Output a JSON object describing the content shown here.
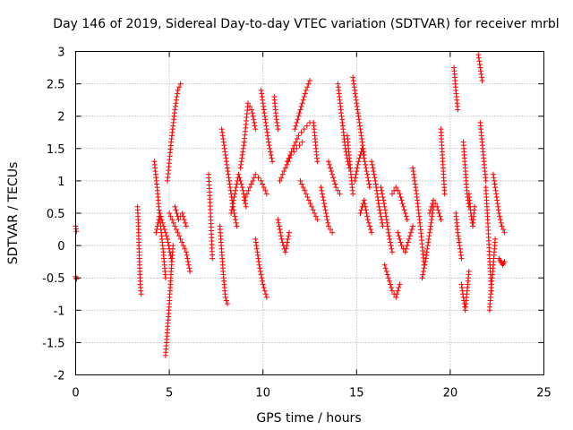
{
  "chart_data": {
    "type": "scatter",
    "title": "Day 146 of 2019, Sidereal Day-to-day VTEC variation (SDTVAR) for receiver mrbl",
    "xlabel": "GPS time / hours",
    "ylabel": "SDTVAR / TECUs",
    "xlim": [
      0,
      25
    ],
    "ylim": [
      -2,
      3
    ],
    "xticks": [
      0,
      5,
      10,
      15,
      20,
      25
    ],
    "xtick_labels": [
      "0",
      "5",
      "10",
      "15",
      "20",
      "25"
    ],
    "yticks": [
      -2,
      -1.5,
      -1,
      -0.5,
      0,
      0.5,
      1,
      1.5,
      2,
      2.5,
      3
    ],
    "ytick_labels": [
      "-2",
      "-1.5",
      "-1",
      "-0.5",
      "0",
      "0.5",
      "1",
      "1.5",
      "2",
      "2.5",
      "3"
    ],
    "grid": true,
    "marker": "+",
    "color": "#ff0000",
    "series": [
      {
        "name": "SDTVAR",
        "tracks": [
          {
            "x": [
              0.0,
              0.05
            ],
            "y": [
              0.3,
              0.22
            ]
          },
          {
            "x": [
              0.0,
              0.05
            ],
            "y": [
              -0.48,
              -0.52
            ]
          },
          {
            "x": [
              3.3,
              3.35,
              3.4,
              3.45,
              3.5
            ],
            "y": [
              0.6,
              0.3,
              -0.2,
              -0.6,
              -0.75
            ]
          },
          {
            "x": [
              4.2,
              4.35,
              4.5,
              4.65,
              4.8
            ],
            "y": [
              1.3,
              0.9,
              0.4,
              0.0,
              -0.5
            ]
          },
          {
            "x": [
              4.3,
              4.5,
              4.7,
              4.9,
              5.1
            ],
            "y": [
              0.2,
              0.5,
              0.3,
              0.1,
              -0.2
            ]
          },
          {
            "x": [
              4.8,
              4.9,
              5.0,
              5.1,
              5.2
            ],
            "y": [
              -1.7,
              -1.3,
              -0.9,
              -0.4,
              0.0
            ]
          },
          {
            "x": [
              4.9,
              5.1,
              5.3,
              5.45,
              5.6
            ],
            "y": [
              1.0,
              1.6,
              2.1,
              2.4,
              2.5
            ]
          },
          {
            "x": [
              5.0,
              5.3,
              5.6,
              5.9,
              6.1
            ],
            "y": [
              0.5,
              0.3,
              0.1,
              -0.1,
              -0.4
            ]
          },
          {
            "x": [
              5.3,
              5.5,
              5.7,
              5.9
            ],
            "y": [
              0.6,
              0.4,
              0.5,
              0.3
            ]
          },
          {
            "x": [
              7.1,
              7.2,
              7.3
            ],
            "y": [
              1.1,
              0.5,
              -0.2
            ]
          },
          {
            "x": [
              7.7,
              7.8,
              7.9,
              8.0,
              8.1
            ],
            "y": [
              0.3,
              -0.1,
              -0.5,
              -0.8,
              -0.9
            ]
          },
          {
            "x": [
              7.8,
              8.0,
              8.2,
              8.4,
              8.6
            ],
            "y": [
              1.8,
              1.4,
              1.0,
              0.6,
              0.3
            ]
          },
          {
            "x": [
              8.3,
              8.5,
              8.7,
              8.9,
              9.1
            ],
            "y": [
              0.5,
              0.8,
              1.1,
              0.9,
              0.6
            ]
          },
          {
            "x": [
              8.8,
              9.0,
              9.2,
              9.4,
              9.6
            ],
            "y": [
              1.2,
              1.6,
              2.2,
              2.1,
              1.8
            ]
          },
          {
            "x": [
              9.0,
              9.3,
              9.6,
              9.9,
              10.2
            ],
            "y": [
              0.7,
              0.9,
              1.1,
              1.0,
              0.8
            ]
          },
          {
            "x": [
              9.6,
              9.8,
              10.0,
              10.2
            ],
            "y": [
              0.1,
              -0.3,
              -0.6,
              -0.8
            ]
          },
          {
            "x": [
              9.9,
              10.1,
              10.3,
              10.5
            ],
            "y": [
              2.4,
              2.0,
              1.6,
              1.3
            ]
          },
          {
            "x": [
              10.6,
              10.7,
              10.8
            ],
            "y": [
              2.3,
              2.0,
              1.8
            ]
          },
          {
            "x": [
              10.8,
              11.0,
              11.2,
              11.4
            ],
            "y": [
              0.4,
              0.1,
              -0.1,
              0.2
            ]
          },
          {
            "x": [
              10.9,
              11.2,
              11.5,
              11.8,
              12.1
            ],
            "y": [
              1.0,
              1.2,
              1.4,
              1.5,
              1.6
            ]
          },
          {
            "x": [
              11.3,
              11.6,
              11.9,
              12.2,
              12.5
            ],
            "y": [
              1.3,
              1.5,
              1.7,
              1.8,
              1.9
            ]
          },
          {
            "x": [
              11.7,
              11.9,
              12.1,
              12.3,
              12.5
            ],
            "y": [
              1.8,
              2.0,
              2.2,
              2.4,
              2.55
            ]
          },
          {
            "x": [
              12.0,
              12.3,
              12.6,
              12.9
            ],
            "y": [
              1.0,
              0.8,
              0.6,
              0.4
            ]
          },
          {
            "x": [
              12.7,
              12.8,
              12.9
            ],
            "y": [
              1.9,
              1.6,
              1.3
            ]
          },
          {
            "x": [
              13.1,
              13.3,
              13.5,
              13.7
            ],
            "y": [
              0.9,
              0.6,
              0.3,
              0.2
            ]
          },
          {
            "x": [
              13.5,
              13.7,
              13.9,
              14.1
            ],
            "y": [
              1.3,
              1.1,
              0.9,
              0.8
            ]
          },
          {
            "x": [
              14.0,
              14.2,
              14.4,
              14.6
            ],
            "y": [
              2.5,
              2.0,
              1.5,
              1.2
            ]
          },
          {
            "x": [
              14.5,
              14.6,
              14.7,
              14.8
            ],
            "y": [
              1.7,
              1.4,
              1.1,
              0.8
            ]
          },
          {
            "x": [
              14.8,
              15.0,
              15.2,
              15.4
            ],
            "y": [
              2.6,
              2.2,
              1.8,
              1.4
            ]
          },
          {
            "x": [
              14.9,
              15.1,
              15.3,
              15.5,
              15.7
            ],
            "y": [
              1.0,
              1.3,
              1.5,
              1.2,
              0.9
            ]
          },
          {
            "x": [
              15.2,
              15.4,
              15.6,
              15.8
            ],
            "y": [
              0.5,
              0.7,
              0.4,
              0.2
            ]
          },
          {
            "x": [
              15.8,
              16.0,
              16.2,
              16.4
            ],
            "y": [
              1.3,
              1.0,
              0.6,
              0.3
            ]
          },
          {
            "x": [
              16.3,
              16.5,
              16.7,
              16.9
            ],
            "y": [
              0.9,
              0.6,
              0.2,
              -0.1
            ]
          },
          {
            "x": [
              16.5,
              16.7,
              16.9,
              17.1,
              17.3
            ],
            "y": [
              -0.3,
              -0.5,
              -0.7,
              -0.8,
              -0.6
            ]
          },
          {
            "x": [
              16.9,
              17.1,
              17.3,
              17.5,
              17.7
            ],
            "y": [
              0.8,
              0.9,
              0.8,
              0.6,
              0.4
            ]
          },
          {
            "x": [
              17.2,
              17.4,
              17.6,
              17.8,
              18.0
            ],
            "y": [
              0.2,
              0.0,
              -0.1,
              0.1,
              0.3
            ]
          },
          {
            "x": [
              18.0,
              18.2,
              18.4,
              18.6
            ],
            "y": [
              1.2,
              0.8,
              0.3,
              -0.3
            ]
          },
          {
            "x": [
              18.5,
              18.7,
              18.9,
              19.1
            ],
            "y": [
              -0.5,
              -0.2,
              0.2,
              0.6
            ]
          },
          {
            "x": [
              18.9,
              19.1,
              19.3,
              19.5
            ],
            "y": [
              0.5,
              0.7,
              0.6,
              0.4
            ]
          },
          {
            "x": [
              19.5,
              19.6,
              19.7
            ],
            "y": [
              1.8,
              1.3,
              0.8
            ]
          },
          {
            "x": [
              20.2,
              20.3,
              20.4
            ],
            "y": [
              2.75,
              2.4,
              2.1
            ]
          },
          {
            "x": [
              20.3,
              20.4,
              20.5,
              20.6
            ],
            "y": [
              0.5,
              0.2,
              0.0,
              -0.2
            ]
          },
          {
            "x": [
              20.6,
              20.7,
              20.8,
              20.9,
              21.0
            ],
            "y": [
              -0.6,
              -0.8,
              -1.0,
              -0.7,
              -0.4
            ]
          },
          {
            "x": [
              20.7,
              20.8,
              20.9,
              21.0
            ],
            "y": [
              1.6,
              1.2,
              0.8,
              0.6
            ]
          },
          {
            "x": [
              21.0,
              21.1,
              21.2,
              21.3
            ],
            "y": [
              0.8,
              0.5,
              0.3,
              0.6
            ]
          },
          {
            "x": [
              21.5,
              21.6,
              21.7
            ],
            "y": [
              2.95,
              2.75,
              2.55
            ]
          },
          {
            "x": [
              21.6,
              21.7,
              21.8,
              21.9
            ],
            "y": [
              1.9,
              1.6,
              1.3,
              1.0
            ]
          },
          {
            "x": [
              21.9,
              22.0,
              22.1,
              22.2
            ],
            "y": [
              0.9,
              0.4,
              -0.2,
              -0.7
            ]
          },
          {
            "x": [
              22.1,
              22.2,
              22.3,
              22.4
            ],
            "y": [
              -1.0,
              -0.6,
              -0.3,
              0.1
            ]
          },
          {
            "x": [
              22.3,
              22.45,
              22.6,
              22.75,
              22.9
            ],
            "y": [
              1.1,
              0.8,
              0.5,
              0.3,
              0.2
            ]
          },
          {
            "x": [
              22.6,
              22.7,
              22.8,
              22.9
            ],
            "y": [
              -0.2,
              -0.25,
              -0.3,
              -0.25
            ]
          }
        ]
      }
    ]
  }
}
